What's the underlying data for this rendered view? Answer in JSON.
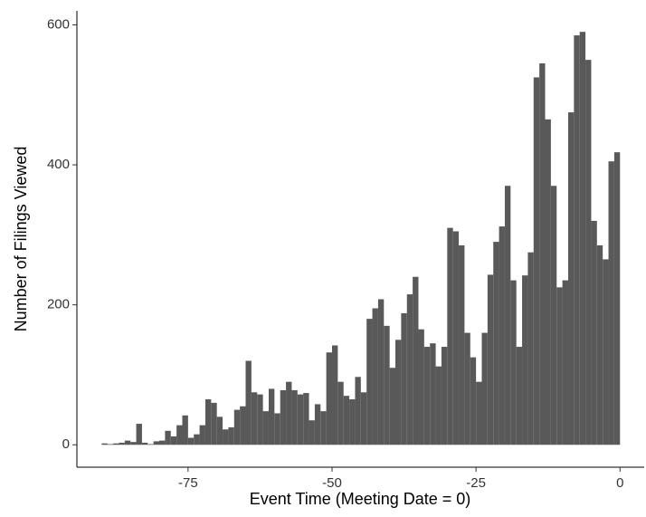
{
  "chart_data": {
    "type": "histogram",
    "x_label": "Event Time (Meeting Date = 0)",
    "y_label": "Number of Filings Viewed",
    "color": "#595959",
    "bins": [
      -90,
      -89,
      -88,
      -87,
      -86,
      -85,
      -84,
      -83,
      -82,
      -81,
      -80,
      -79,
      -78,
      -77,
      -76,
      -75,
      -74,
      -73,
      -72,
      -71,
      -70,
      -69,
      -68,
      -67,
      -66,
      -65,
      -64,
      -63,
      -62,
      -61,
      -60,
      -59,
      -58,
      -57,
      -56,
      -55,
      -54,
      -53,
      -52,
      -51,
      -50,
      -49,
      -48,
      -47,
      -46,
      -45,
      -44,
      -43,
      -42,
      -41,
      -40,
      -39,
      -38,
      -37,
      -36,
      -35,
      -34,
      -33,
      -32,
      -31,
      -30,
      -29,
      -28,
      -27,
      -26,
      -25,
      -24,
      -23,
      -22,
      -21,
      -20,
      -19,
      -18,
      -17,
      -16,
      -15,
      -14,
      -13,
      -12,
      -11,
      -10,
      -9,
      -8,
      -7,
      -6,
      -5,
      -4,
      -3,
      -2,
      -1,
      0
    ],
    "values": [
      2,
      1,
      2,
      3,
      6,
      4,
      30,
      3,
      1,
      5,
      6,
      20,
      12,
      28,
      42,
      10,
      15,
      28,
      65,
      60,
      40,
      22,
      25,
      50,
      55,
      120,
      75,
      72,
      48,
      80,
      45,
      78,
      90,
      78,
      72,
      74,
      35,
      58,
      48,
      132,
      142,
      90,
      70,
      65,
      97,
      75,
      180,
      195,
      208,
      170,
      110,
      150,
      188,
      215,
      240,
      165,
      140,
      145,
      112,
      140,
      310,
      305,
      285,
      160,
      125,
      90,
      160,
      243,
      290,
      312,
      370,
      235,
      140,
      242,
      275,
      525,
      545,
      465,
      370,
      225,
      235,
      475,
      585,
      590,
      550,
      320,
      285,
      265,
      405,
      418
    ],
    "xlim": [
      -94.3,
      4.2
    ],
    "ylim": [
      -32,
      620
    ],
    "xticks": [
      -75,
      -50,
      -25,
      0
    ],
    "yticks": [
      0,
      200,
      400,
      600
    ]
  }
}
